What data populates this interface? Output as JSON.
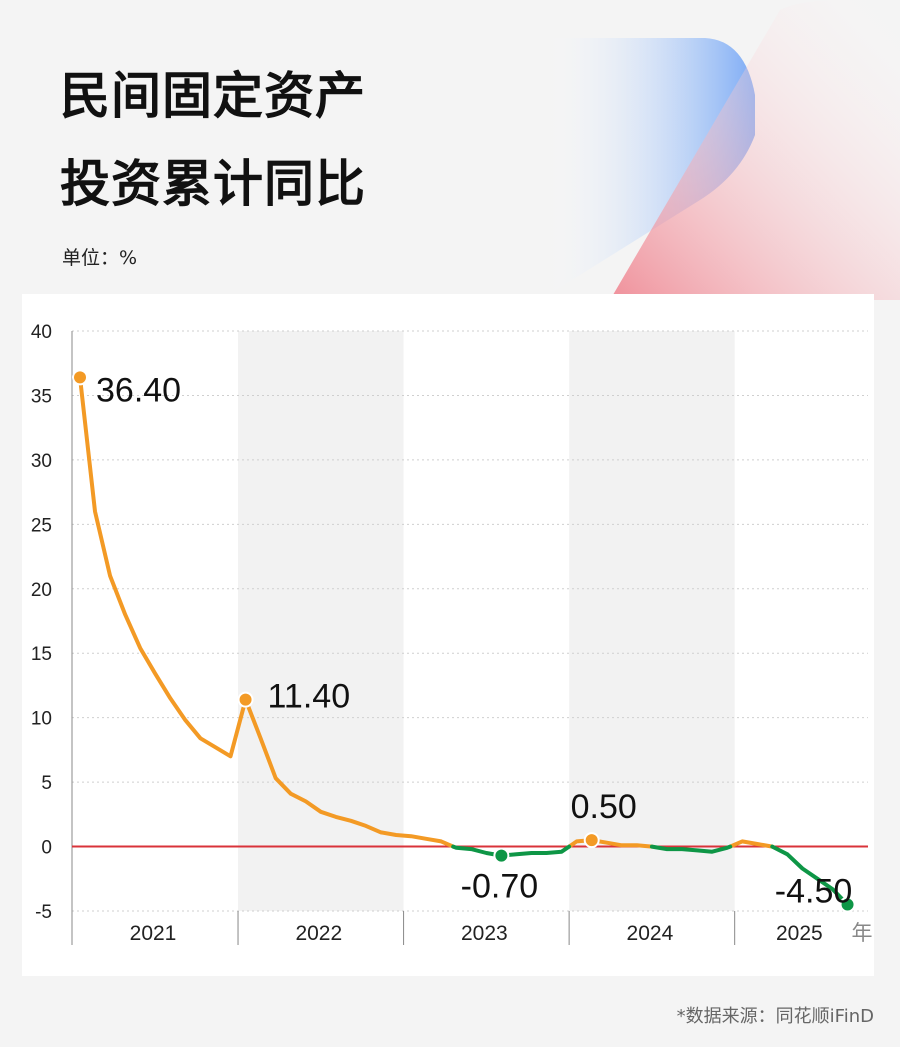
{
  "header": {
    "title_line1": "民间固定资产",
    "title_line2": "投资累计同比",
    "unit": "单位：%"
  },
  "footer": {
    "source": "*数据来源：同花顺iFinD"
  },
  "colors": {
    "positive_line": "#f39a25",
    "negative_line": "#0e9646",
    "zero_line": "#d9333a",
    "band_shade": "#f2f2f2",
    "grid": "#cfcfcf",
    "deco_blue": "#6fa3f5",
    "deco_red": "#ef7e8a"
  },
  "chart_data": {
    "type": "line",
    "title": "",
    "xlabel": "年",
    "ylabel": "",
    "ylim": [
      -5,
      40
    ],
    "yticks": [
      -5,
      0,
      5,
      10,
      15,
      20,
      25,
      30,
      35,
      40
    ],
    "grid": "horizontal dotted",
    "years": [
      "2021",
      "2022",
      "2023",
      "2024",
      "2025"
    ],
    "series": [
      {
        "points": [
          [
            "2021-02",
            36.4
          ],
          [
            "2021-03",
            26.0
          ],
          [
            "2021-04",
            21.0
          ],
          [
            "2021-05",
            18.0
          ],
          [
            "2021-06",
            15.4
          ],
          [
            "2021-07",
            13.4
          ],
          [
            "2021-08",
            11.5
          ],
          [
            "2021-09",
            9.8
          ],
          [
            "2021-10",
            8.4
          ],
          [
            "2021-11",
            7.7
          ],
          [
            "2021-12",
            7.0
          ],
          [
            "2022-02",
            11.4
          ],
          [
            "2022-03",
            8.4
          ],
          [
            "2022-04",
            5.3
          ],
          [
            "2022-05",
            4.1
          ],
          [
            "2022-06",
            3.5
          ],
          [
            "2022-07",
            2.7
          ],
          [
            "2022-08",
            2.3
          ],
          [
            "2022-09",
            2.0
          ],
          [
            "2022-10",
            1.6
          ],
          [
            "2022-11",
            1.1
          ],
          [
            "2022-12",
            0.9
          ],
          [
            "2023-02",
            0.8
          ],
          [
            "2023-03",
            0.6
          ],
          [
            "2023-04",
            0.4
          ],
          [
            "2023-05",
            -0.1
          ],
          [
            "2023-06",
            -0.2
          ],
          [
            "2023-07",
            -0.5
          ],
          [
            "2023-08",
            -0.7
          ],
          [
            "2023-09",
            -0.6
          ],
          [
            "2023-10",
            -0.5
          ],
          [
            "2023-11",
            -0.5
          ],
          [
            "2023-12",
            -0.4
          ],
          [
            "2024-02",
            0.4
          ],
          [
            "2024-03",
            0.5
          ],
          [
            "2024-04",
            0.3
          ],
          [
            "2024-05",
            0.1
          ],
          [
            "2024-06",
            0.1
          ],
          [
            "2024-07",
            0.0
          ],
          [
            "2024-08",
            -0.2
          ],
          [
            "2024-09",
            -0.2
          ],
          [
            "2024-10",
            -0.3
          ],
          [
            "2024-11",
            -0.4
          ],
          [
            "2024-12",
            -0.1
          ],
          [
            "2025-02",
            0.4
          ],
          [
            "2025-03",
            0.2
          ],
          [
            "2025-04",
            0.0
          ],
          [
            "2025-05",
            -0.6
          ],
          [
            "2025-06",
            -1.7
          ],
          [
            "2025-07",
            -2.5
          ],
          [
            "2025-08",
            -3.3
          ],
          [
            "2025-09",
            -4.5
          ]
        ]
      }
    ],
    "annotations": [
      {
        "x": "2021-02",
        "y": 36.4,
        "label": "36.40"
      },
      {
        "x": "2022-02",
        "y": 11.4,
        "label": "11.40"
      },
      {
        "x": "2023-08",
        "y": -0.7,
        "label": "-0.70"
      },
      {
        "x": "2024-03",
        "y": 0.5,
        "label": "0.50"
      },
      {
        "x": "2025-09",
        "y": -4.5,
        "label": "-4.50"
      }
    ]
  }
}
